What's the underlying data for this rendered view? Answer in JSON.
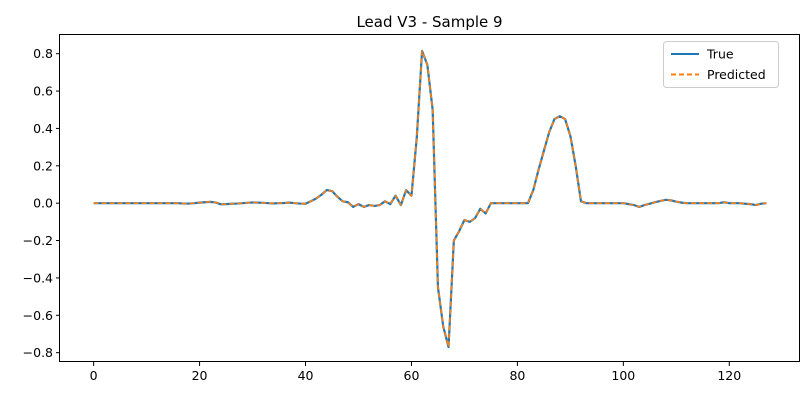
{
  "chart_data": {
    "type": "line",
    "title": "Lead V3 - Sample 9",
    "xlabel": "",
    "ylabel": "",
    "xlim": [
      -6.35,
      133.35
    ],
    "ylim": [
      -0.85,
      0.9
    ],
    "xticks": [
      0,
      20,
      40,
      60,
      80,
      100,
      120
    ],
    "yticks": [
      -0.8,
      -0.6,
      -0.4,
      -0.2,
      0.0,
      0.2,
      0.4,
      0.6,
      0.8
    ],
    "ytick_labels": [
      "−0.8",
      "−0.6",
      "−0.4",
      "−0.2",
      "0.0",
      "0.2",
      "0.4",
      "0.6",
      "0.8"
    ],
    "grid": false,
    "legend_position": "top-right",
    "series": [
      {
        "name": "True",
        "color": "#1f77b4",
        "style": "solid",
        "values": [
          0.0,
          0.0,
          0.0,
          0.0,
          0.0,
          0.0,
          0.0,
          0.0,
          0.0,
          0.0,
          0.0,
          0.0,
          0.0,
          0.0,
          0.0,
          0.0,
          0.0,
          -0.002,
          -0.002,
          0.0,
          0.003,
          0.005,
          0.007,
          0.004,
          -0.006,
          -0.005,
          -0.003,
          -0.002,
          0.0,
          0.002,
          0.004,
          0.003,
          0.002,
          0.0,
          -0.001,
          0.0,
          0.001,
          0.003,
          0.0,
          -0.002,
          -0.003,
          0.01,
          0.025,
          0.045,
          0.07,
          0.065,
          0.035,
          0.01,
          0.005,
          -0.02,
          -0.005,
          -0.02,
          -0.01,
          -0.015,
          -0.01,
          0.01,
          -0.005,
          0.04,
          -0.01,
          0.07,
          0.04,
          0.35,
          0.815,
          0.74,
          0.5,
          -0.45,
          -0.66,
          -0.77,
          -0.2,
          -0.15,
          -0.09,
          -0.1,
          -0.08,
          -0.03,
          -0.055,
          0.0,
          0.0,
          0.0,
          0.0,
          0.0,
          0.0,
          0.0,
          0.0,
          0.07,
          0.18,
          0.28,
          0.38,
          0.45,
          0.465,
          0.45,
          0.36,
          0.2,
          0.01,
          0.0,
          0.0,
          0.0,
          0.0,
          0.0,
          0.0,
          0.0,
          0.0,
          -0.005,
          -0.01,
          -0.02,
          -0.01,
          -0.003,
          0.005,
          0.012,
          0.018,
          0.015,
          0.008,
          0.003,
          0.0,
          0.0,
          0.0,
          0.0,
          0.0,
          0.0,
          0.0,
          0.005,
          0.0,
          0.0,
          0.0,
          -0.003,
          -0.005,
          -0.01,
          -0.003,
          0.0
        ]
      },
      {
        "name": "Predicted",
        "color": "#ff7f0e",
        "style": "dashed",
        "values": [
          0.0,
          0.0,
          0.0,
          0.0,
          0.0,
          0.0,
          0.0,
          0.0,
          0.0,
          0.0,
          0.0,
          0.0,
          0.0,
          0.0,
          0.0,
          0.0,
          0.0,
          -0.002,
          -0.002,
          0.0,
          0.003,
          0.005,
          0.007,
          0.004,
          -0.006,
          -0.005,
          -0.003,
          -0.002,
          0.0,
          0.002,
          0.004,
          0.003,
          0.002,
          0.0,
          -0.001,
          0.0,
          0.001,
          0.003,
          0.0,
          -0.002,
          -0.003,
          0.01,
          0.025,
          0.045,
          0.07,
          0.065,
          0.035,
          0.01,
          0.005,
          -0.02,
          -0.005,
          -0.02,
          -0.01,
          -0.015,
          -0.01,
          0.01,
          -0.005,
          0.04,
          -0.01,
          0.07,
          0.04,
          0.35,
          0.815,
          0.74,
          0.5,
          -0.45,
          -0.66,
          -0.77,
          -0.2,
          -0.15,
          -0.09,
          -0.1,
          -0.08,
          -0.03,
          -0.055,
          0.0,
          0.0,
          0.0,
          0.0,
          0.0,
          0.0,
          0.0,
          0.0,
          0.07,
          0.18,
          0.28,
          0.38,
          0.45,
          0.465,
          0.45,
          0.36,
          0.2,
          0.01,
          0.0,
          0.0,
          0.0,
          0.0,
          0.0,
          0.0,
          0.0,
          0.0,
          -0.005,
          -0.01,
          -0.02,
          -0.01,
          -0.003,
          0.005,
          0.012,
          0.018,
          0.015,
          0.008,
          0.003,
          0.0,
          0.0,
          0.0,
          0.0,
          0.0,
          0.0,
          0.0,
          0.005,
          0.0,
          0.0,
          0.0,
          -0.003,
          -0.005,
          -0.01,
          -0.003,
          0.0
        ]
      }
    ]
  }
}
